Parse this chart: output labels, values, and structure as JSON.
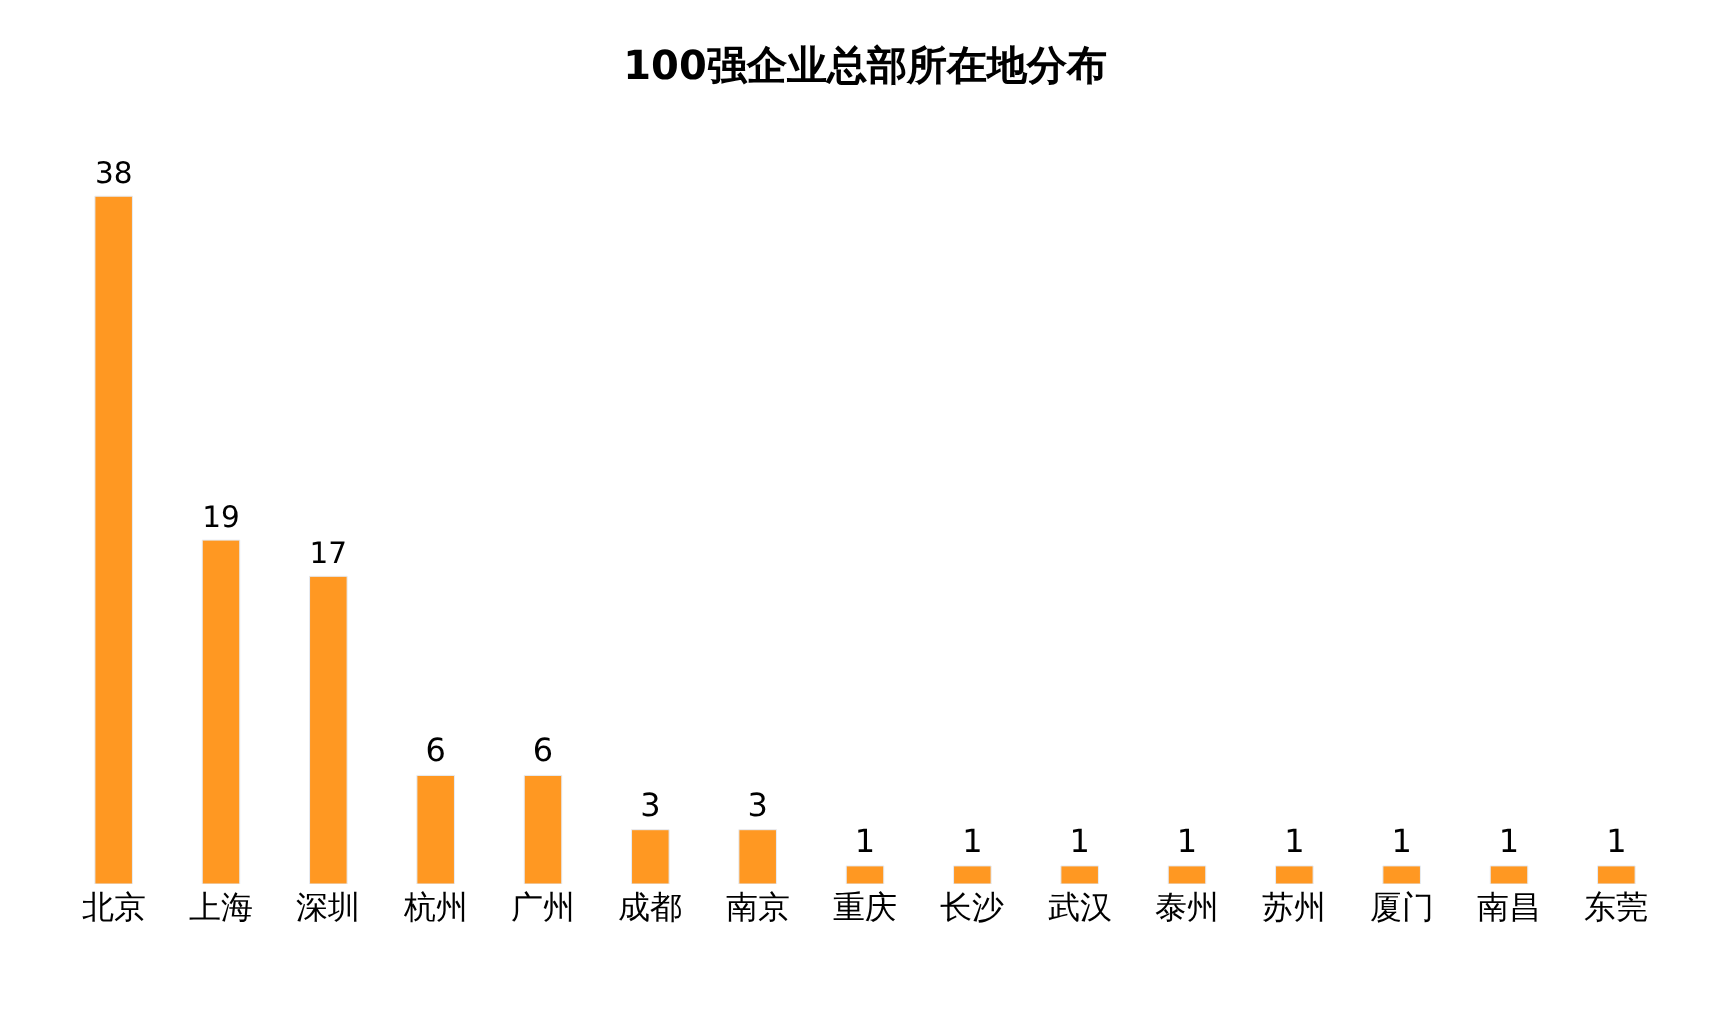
{
  "chart_data": {
    "type": "bar",
    "title": "100强企业总部所在地分布",
    "categories": [
      "北京",
      "上海",
      "深圳",
      "杭州",
      "广州",
      "成都",
      "南京",
      "重庆",
      "长沙",
      "武汉",
      "泰州",
      "苏州",
      "厦门",
      "南昌",
      "东莞"
    ],
    "values": [
      38,
      19,
      17,
      6,
      6,
      3,
      3,
      1,
      1,
      1,
      1,
      1,
      1,
      1,
      1
    ],
    "color": "#ff9822",
    "data_labels": true,
    "legend": false
  }
}
